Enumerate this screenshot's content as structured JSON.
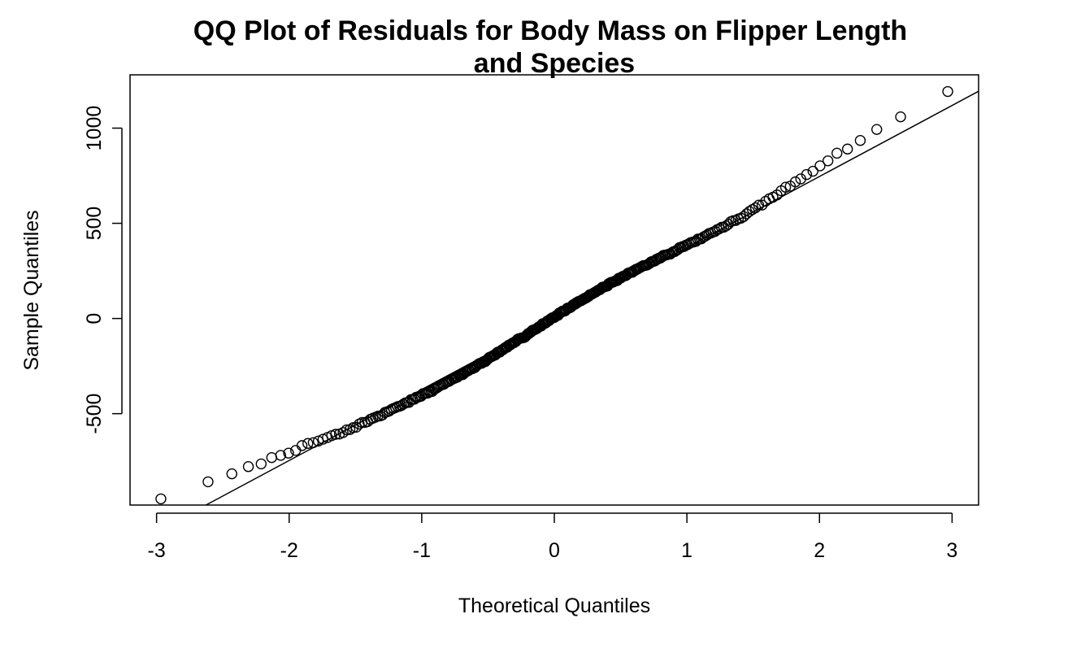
{
  "chart_data": {
    "type": "scatter",
    "title_lines": [
      "QQ Plot of Residuals for Body Mass on Flipper Length",
      "and Species"
    ],
    "xlabel": "Theoretical Quantiles",
    "ylabel": "Sample Quantiles",
    "xlim": [
      -3.2,
      3.2
    ],
    "ylim": [
      -980,
      1280
    ],
    "x_ticks": [
      -3,
      -2,
      -1,
      0,
      1,
      2,
      3
    ],
    "x_tick_labels": [
      "-3",
      "-2",
      "-1",
      "0",
      "1",
      "2",
      "3"
    ],
    "y_ticks": [
      -500,
      0,
      500,
      1000
    ],
    "y_tick_labels": [
      "-500",
      "0",
      "500",
      "1000"
    ],
    "reference_line": {
      "intercept": 0,
      "slope": 373
    },
    "n_points": 333,
    "noise_seed": 7,
    "grid": false,
    "legend": "none",
    "marker": "open-circle",
    "colors": {
      "points": "#000000",
      "line": "#000000",
      "axes": "#000000",
      "background": "#ffffff"
    }
  }
}
